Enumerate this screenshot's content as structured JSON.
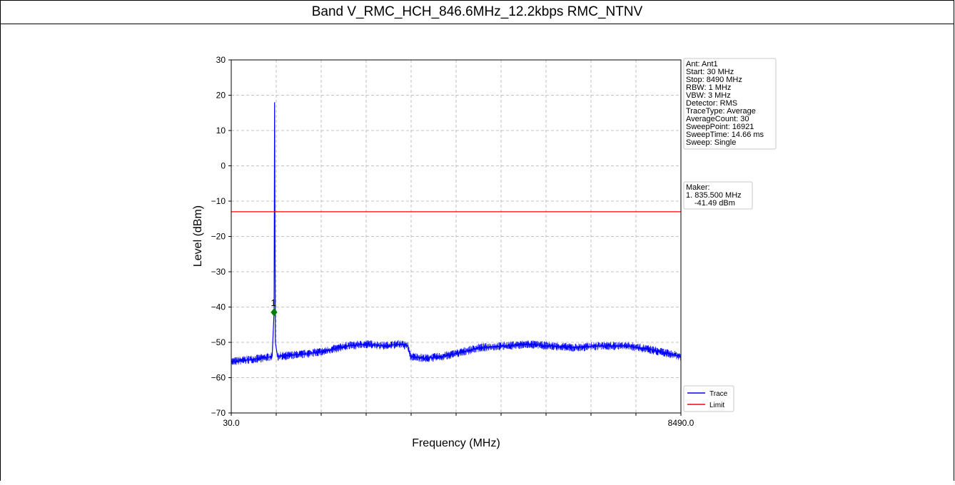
{
  "page_title": "Band V_RMC_HCH_846.6MHz_12.2kbps RMC_NTNV",
  "chart_data": {
    "type": "line",
    "xlabel": "Frequency (MHz)",
    "ylabel": "Level (dBm)",
    "xlim": [
      30.0,
      8490.0
    ],
    "ylim": [
      -70,
      30
    ],
    "x_tick_labels": [
      "30.0",
      "8490.0"
    ],
    "y_ticks": [
      30,
      20,
      10,
      0,
      -10,
      -20,
      -30,
      -40,
      -50,
      -60,
      -70
    ],
    "y_tick_labels": [
      "30",
      "20",
      "10",
      "0",
      "−10",
      "−20",
      "−30",
      "−40",
      "−50",
      "−60",
      "−70"
    ],
    "grid": true,
    "x_grid_divisions": 10,
    "series": [
      {
        "name": "Trace",
        "color": "#0000ff",
        "x": [
          30,
          300,
          600,
          800,
          835.5,
          845,
          860,
          900,
          1300,
          1800,
          2200,
          2600,
          2900,
          3200,
          3350,
          3400,
          3700,
          4000,
          4300,
          4700,
          5200,
          5600,
          6000,
          6500,
          7000,
          7500,
          7900,
          8200,
          8490
        ],
        "y": [
          -55.5,
          -55.0,
          -54.5,
          -54.0,
          -41.5,
          18.0,
          -50.0,
          -54.0,
          -53.5,
          -52.5,
          -51.0,
          -50.5,
          -51.0,
          -50.5,
          -51.0,
          -54.0,
          -54.5,
          -54.0,
          -53.0,
          -51.5,
          -51.0,
          -50.5,
          -51.0,
          -51.5,
          -51.0,
          -51.0,
          -52.0,
          -53.0,
          -54.0
        ]
      },
      {
        "name": "Limit",
        "color": "#ff0000",
        "x": [
          30,
          8490
        ],
        "y": [
          -13,
          -13
        ]
      }
    ],
    "legend_placement": "lower-right",
    "marker": {
      "label": "1",
      "x": 835.5,
      "y": -41.49,
      "color": "#008000"
    },
    "info_box_lines": [
      "Ant: Ant1",
      "Start: 30 MHz",
      "Stop: 8490 MHz",
      "RBW: 1 MHz",
      "VBW: 3 MHz",
      "Detector: RMS",
      "TraceType: Average",
      "AverageCount: 30",
      "SweepPoint: 16921",
      "SweepTime: 14.66 ms",
      "Sweep: Single"
    ],
    "marker_box_lines": [
      "Maker:",
      "1. 835.500 MHz",
      "-41.49 dBm"
    ]
  }
}
